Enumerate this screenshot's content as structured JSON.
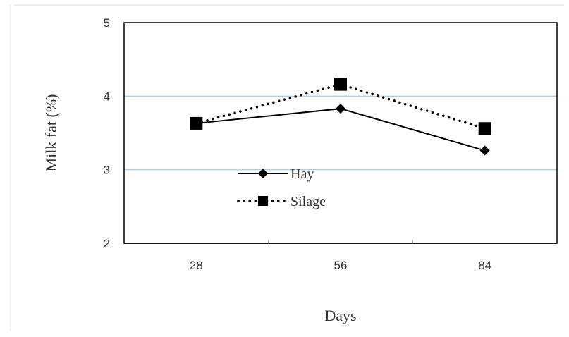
{
  "chart_data": {
    "type": "line",
    "x": [
      28,
      56,
      84
    ],
    "xlabel": "Days",
    "ylabel": "Milk fat (%)",
    "ylim": [
      2,
      5
    ],
    "yticks": [
      2,
      3,
      4,
      5
    ],
    "grid": "horizontal",
    "legend_position": "center-left",
    "series": [
      {
        "name": "Hay",
        "values": [
          3.63,
          3.83,
          3.26
        ],
        "marker": "diamond",
        "line": "solid",
        "color": "#000000"
      },
      {
        "name": "Silage",
        "values": [
          3.63,
          4.16,
          3.56
        ],
        "marker": "square",
        "line": "dotted",
        "color": "#000000"
      }
    ]
  },
  "colors": {
    "grid": "#b6cde0",
    "frame_border": "#d9d9d9",
    "axis": "#000000"
  }
}
